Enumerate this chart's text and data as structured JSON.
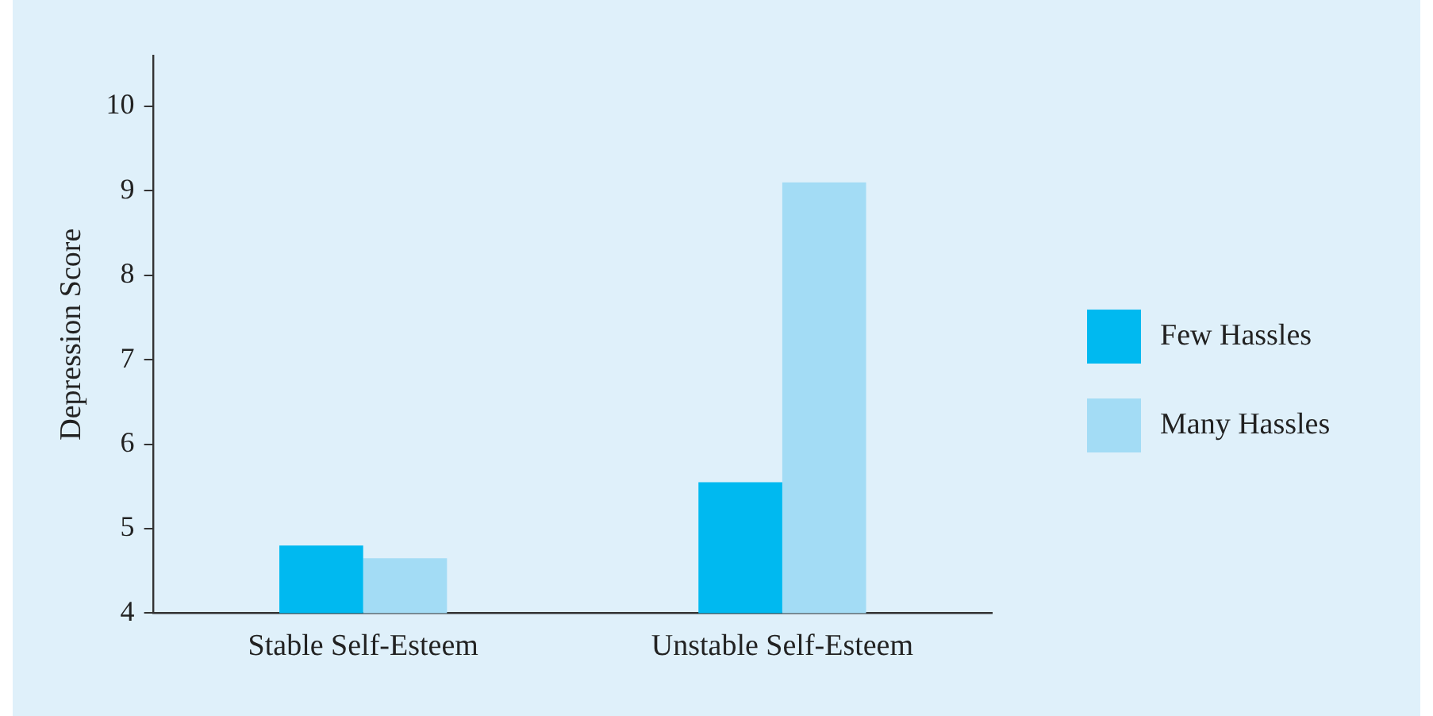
{
  "chart_data": {
    "type": "bar",
    "ylabel": "Depression Score",
    "categories": [
      "Stable Self-Esteem",
      "Unstable Self-Esteem"
    ],
    "series": [
      {
        "name": "Few Hassles",
        "color": "#00b9f0",
        "values": [
          4.8,
          5.55
        ]
      },
      {
        "name": "Many Hassles",
        "color": "#a3dcf5",
        "values": [
          4.65,
          9.1
        ]
      }
    ],
    "ylim": [
      4,
      10.6
    ],
    "yticks": [
      4,
      5,
      6,
      7,
      8,
      9,
      10
    ],
    "grid": false,
    "legend": "right"
  }
}
